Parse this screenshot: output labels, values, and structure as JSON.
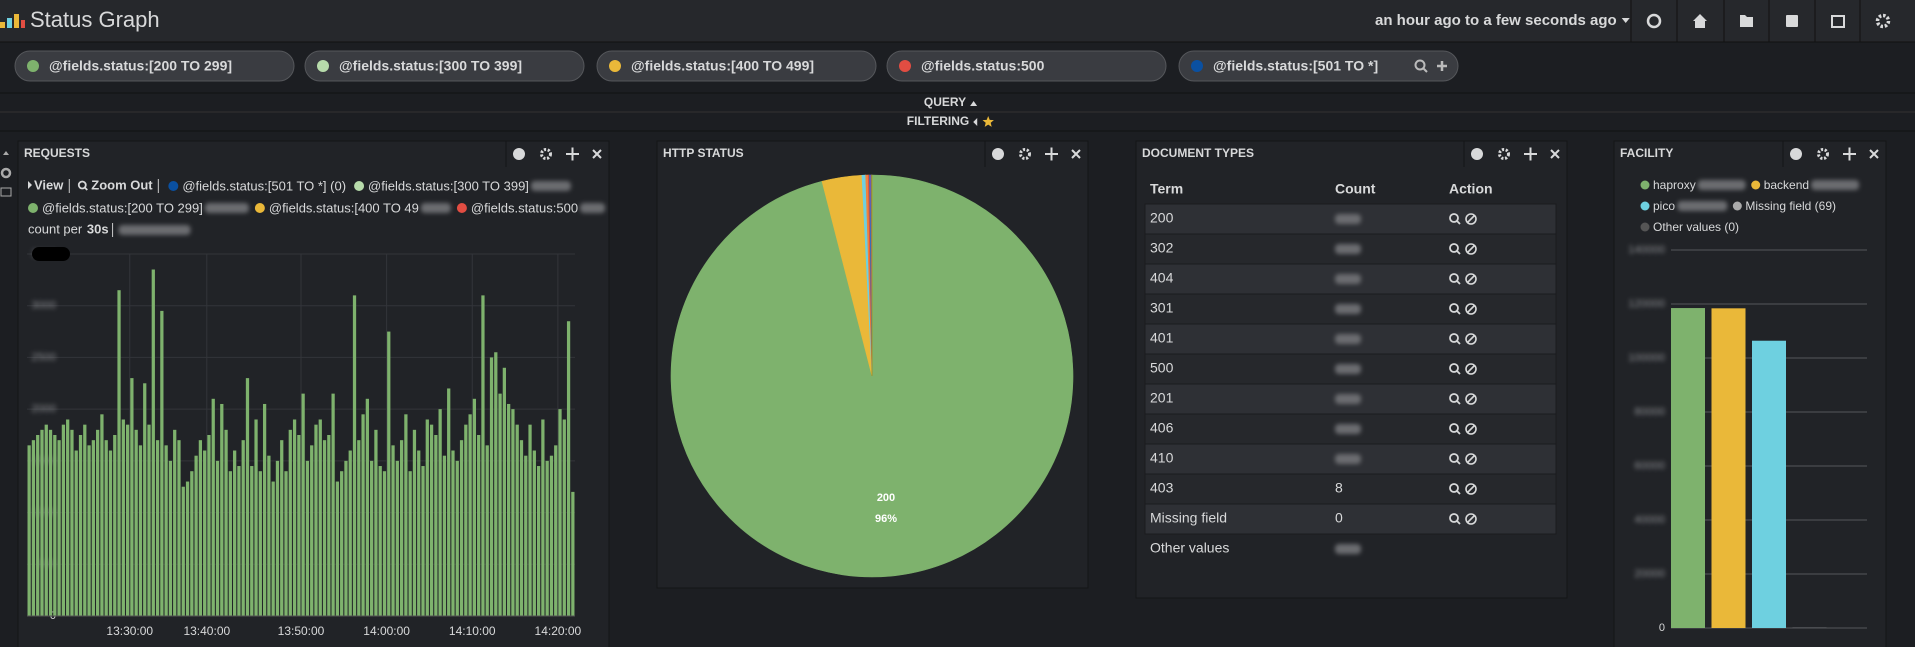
{
  "header": {
    "title": "Status Graph",
    "time_range": "an hour ago to a few seconds ago"
  },
  "filters": [
    {
      "label": "@fields.status:[200 TO 299]",
      "color": "#7eb26d"
    },
    {
      "label": "@fields.status:[300 TO 399]",
      "color": "#b7dbab"
    },
    {
      "label": "@fields.status:[400 TO 499]",
      "color": "#eab839"
    },
    {
      "label": "@fields.status:500",
      "color": "#e24d42"
    },
    {
      "label": "@fields.status:[501 TO *]",
      "color": "#0a50a1"
    }
  ],
  "query_label": "QUERY",
  "filtering_label": "FILTERING",
  "requests": {
    "title": "REQUESTS",
    "view": "View",
    "zoom_out": "Zoom Out",
    "interval_label": "count per",
    "interval": "30s"
  },
  "http_status": {
    "title": "HTTP STATUS"
  },
  "document_types": {
    "title": "DOCUMENT TYPES",
    "columns": [
      "Term",
      "Count",
      "Action"
    ],
    "rows": [
      {
        "term": "200"
      },
      {
        "term": "302"
      },
      {
        "term": "404"
      },
      {
        "term": "301"
      },
      {
        "term": "401"
      },
      {
        "term": "500"
      },
      {
        "term": "201"
      },
      {
        "term": "406"
      },
      {
        "term": "410"
      },
      {
        "term": "403",
        "count": 8
      },
      {
        "term": "Missing field",
        "count": 0
      },
      {
        "term": "Other values"
      }
    ]
  },
  "facility": {
    "title": "FACILITY"
  },
  "chart_data": [
    {
      "type": "bar",
      "series": [
        {
          "name": "@fields.status:[501 TO *] (0)",
          "color": "#0a50a1"
        },
        {
          "name": "@fields.status:[300 TO 399]",
          "color": "#b7dbab"
        },
        {
          "name": "@fields.status:[200 TO 299]",
          "color": "#7eb26d",
          "values": [
            1650,
            1700,
            1750,
            1800,
            1850,
            1800,
            1750,
            1700,
            1850,
            1900,
            1800,
            1600,
            1750,
            1850,
            1650,
            1700,
            1800,
            1950,
            1700,
            1600,
            1750,
            3150,
            1900,
            1850,
            2300,
            1800,
            1650,
            2250,
            1850,
            3350,
            1700,
            2950,
            1650,
            1500,
            1800,
            1700,
            1250,
            1300,
            1400,
            1550,
            1700,
            1600,
            1750,
            2100,
            1500,
            2050,
            1800,
            1400,
            1600,
            1450,
            1700,
            2300,
            1450,
            1900,
            1400,
            2050,
            1550,
            1300,
            1500,
            1700,
            1400,
            1800,
            1900,
            1750,
            2150,
            1500,
            1650,
            1850,
            1900,
            1700,
            1750,
            2150,
            1300,
            1400,
            1500,
            1600,
            3100,
            1700,
            1950,
            2100,
            1500,
            1800,
            1450,
            1400,
            2750,
            1650,
            1500,
            1700,
            1950,
            1400,
            1800,
            1600,
            1450,
            1900,
            1850,
            1750,
            2000,
            1550,
            2200,
            1600,
            1500,
            1700,
            1850,
            1950,
            2100,
            1750,
            3100,
            1650,
            2500,
            2550,
            2150,
            2400,
            2050,
            2000,
            1850,
            1700,
            1550,
            1850,
            1600,
            1450,
            1900,
            1500,
            1550,
            1650,
            2000,
            1900,
            2850,
            1200
          ]
        },
        {
          "name": "@fields.status:[400 TO 49",
          "color": "#eab839"
        },
        {
          "name": "@fields.status:500",
          "color": "#e24d42"
        }
      ],
      "xlim": [
        0,
        128
      ],
      "xticks": [
        {
          "value": 24,
          "label": "13:30:00"
        },
        {
          "value": 42,
          "label": "13:40:00"
        },
        {
          "value": 64,
          "label": "13:50:00"
        },
        {
          "value": 84,
          "label": "14:00:00"
        },
        {
          "value": 104,
          "label": "14:10:00"
        },
        {
          "value": 124,
          "label": "14:20:00"
        }
      ],
      "ylim": [
        0,
        3500
      ],
      "yticks": [
        0,
        500,
        1000,
        1500,
        2000,
        2500,
        3000,
        3500
      ],
      "grid": true
    },
    {
      "type": "pie",
      "categories": [
        "200",
        null,
        null,
        null,
        null,
        null,
        null,
        null,
        null,
        null
      ],
      "values": [
        96,
        3.2,
        0.3,
        0.2,
        0.1,
        0.1,
        0.04,
        0.03,
        0.02,
        0.01
      ],
      "value_labels": [
        "96%",
        null,
        null,
        null,
        null,
        null,
        null,
        null,
        null,
        null
      ],
      "colors": [
        "#7eb26d",
        "#eab839",
        "#6ed0e0",
        "#ef843c",
        "#e24d42",
        "#1f78c1",
        "#ba43a9",
        "#705da0",
        "#508642",
        "#cca300"
      ]
    },
    {
      "type": "bar",
      "categories": [
        "haproxy",
        "backend",
        "pico",
        "Missing field (69)",
        "Other values (0)"
      ],
      "values": [
        118500,
        118400,
        106400,
        69,
        0
      ],
      "colors": [
        "#7eb26d",
        "#eab839",
        "#6ed0e0",
        "#aaaaaa",
        "#555555"
      ],
      "ylim": [
        0,
        140000
      ],
      "yticks": [
        0,
        20000,
        40000,
        60000,
        80000,
        100000,
        120000,
        140000
      ],
      "grid": true
    }
  ]
}
